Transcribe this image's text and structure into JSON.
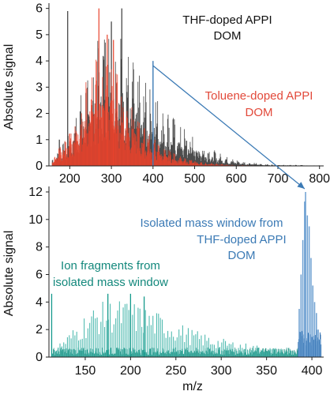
{
  "chart_data": [
    {
      "type": "bar",
      "panel": "top",
      "xlabel": "",
      "ylabel": "Absolute signal",
      "xlim": [
        150,
        810
      ],
      "ylim": [
        0,
        6.2
      ],
      "x_ticks": [
        "200",
        "300",
        "400",
        "500",
        "600",
        "700",
        "800"
      ],
      "y_ticks": [
        "0",
        "1",
        "2",
        "3",
        "4",
        "5",
        "6"
      ],
      "grid": false,
      "colors": {
        "thf": "#3a3a3a",
        "toluene": "#e8432c",
        "arrow": "#3b7ab5"
      },
      "annotations": {
        "thf_line1": "THF-doped APPI",
        "thf_line2": "DOM",
        "tol_line1": "Toluene-doped APPI",
        "tol_line2": "DOM"
      },
      "series": [
        {
          "name": "THF-doped APPI DOM",
          "envelope": [
            [
              160,
              0.3
            ],
            [
              195,
              1.0
            ],
            [
              220,
              2.2
            ],
            [
              250,
              3.6
            ],
            [
              275,
              4.7
            ],
            [
              300,
              5.0
            ],
            [
              320,
              4.7
            ],
            [
              345,
              3.9
            ],
            [
              370,
              3.1
            ],
            [
              400,
              2.6
            ],
            [
              430,
              2.1
            ],
            [
              460,
              1.5
            ],
            [
              500,
              1.0
            ],
            [
              540,
              0.6
            ],
            [
              580,
              0.3
            ],
            [
              620,
              0.15
            ],
            [
              680,
              0.05
            ],
            [
              800,
              0.02
            ]
          ],
          "spikes": [
            [
              195,
              5.9
            ],
            [
              300,
              5.5
            ],
            [
              325,
              6.0
            ],
            [
              175,
              1.0
            ],
            [
              445,
              0.8
            ]
          ]
        },
        {
          "name": "Toluene-doped APPI DOM",
          "envelope": [
            [
              160,
              0.3
            ],
            [
              200,
              1.3
            ],
            [
              230,
              2.6
            ],
            [
              255,
              3.6
            ],
            [
              280,
              4.1
            ],
            [
              300,
              3.8
            ],
            [
              320,
              3.0
            ],
            [
              345,
              2.2
            ],
            [
              370,
              1.5
            ],
            [
              400,
              1.0
            ],
            [
              430,
              0.6
            ],
            [
              470,
              0.3
            ],
            [
              520,
              0.12
            ],
            [
              600,
              0.03
            ],
            [
              800,
              0.0
            ]
          ],
          "spikes": [
            [
              270,
              6.0
            ],
            [
              305,
              4.8
            ],
            [
              290,
              5.0
            ]
          ]
        }
      ],
      "isolated_window_x": 400
    },
    {
      "type": "bar",
      "panel": "bottom",
      "xlabel": "m/z",
      "ylabel": "Absolute signal",
      "xlim": [
        110,
        413
      ],
      "ylim": [
        0,
        12.4
      ],
      "x_ticks": [
        "150",
        "200",
        "250",
        "300",
        "350",
        "400"
      ],
      "y_ticks": [
        "0",
        "2",
        "4",
        "6",
        "8",
        "10",
        "12"
      ],
      "grid": false,
      "colors": {
        "fragments": "#159a8c",
        "window": "#3b7ab5"
      },
      "annotations": {
        "iso_line1": "Isolated mass window from",
        "iso_line2": "THF-doped APPI",
        "iso_line3": "DOM",
        "frag_line1": "Ion fragments from",
        "frag_line2": "isolated mass window"
      },
      "series": [
        {
          "name": "Ion fragments from isolated mass window",
          "envelope": [
            [
              113,
              0.5
            ],
            [
              120,
              0.9
            ],
            [
              135,
              1.8
            ],
            [
              150,
              2.9
            ],
            [
              165,
              3.6
            ],
            [
              180,
              3.8
            ],
            [
              195,
              3.8
            ],
            [
              210,
              3.5
            ],
            [
              230,
              3.0
            ],
            [
              250,
              2.4
            ],
            [
              270,
              1.8
            ],
            [
              290,
              1.4
            ],
            [
              310,
              1.1
            ],
            [
              330,
              0.9
            ],
            [
              350,
              0.7
            ],
            [
              370,
              0.55
            ],
            [
              385,
              0.4
            ]
          ],
          "spikes": [
            [
              113,
              4.6
            ],
            [
              175,
              4.6
            ],
            [
              200,
              4.6
            ],
            [
              215,
              4.4
            ]
          ]
        },
        {
          "name": "Isolated mass window from THF-doped APPI DOM",
          "peaks": [
            [
              386,
              3.5
            ],
            [
              388,
              6.0
            ],
            [
              390,
              8.5
            ],
            [
              392,
              11.3
            ],
            [
              393,
              12.0
            ],
            [
              395,
              10.3
            ],
            [
              397,
              9.5
            ],
            [
              399,
              7.2
            ],
            [
              401,
              5.2
            ],
            [
              403,
              4.0
            ],
            [
              405,
              3.2
            ],
            [
              407,
              2.0
            ],
            [
              409,
              1.3
            ]
          ]
        }
      ]
    }
  ]
}
